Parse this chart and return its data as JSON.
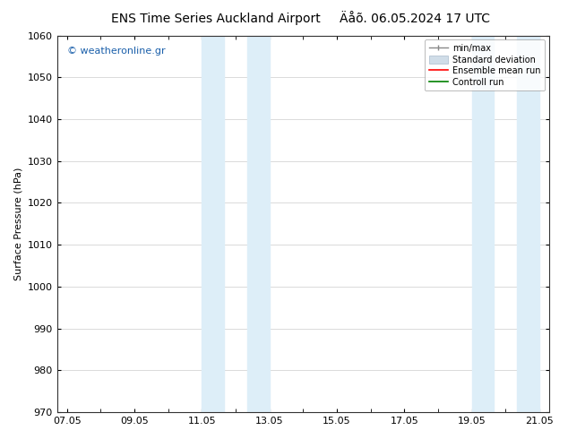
{
  "title_left": "ENS Time Series Auckland Airport",
  "title_right": "Äåõ. 06.05.2024 17 UTC",
  "ylabel": "Surface Pressure (hPa)",
  "ylim": [
    970,
    1060
  ],
  "yticks": [
    970,
    980,
    990,
    1000,
    1010,
    1020,
    1030,
    1040,
    1050,
    1060
  ],
  "xtick_labels": [
    "07.05",
    "09.05",
    "11.05",
    "13.05",
    "15.05",
    "17.05",
    "19.05",
    "21.05"
  ],
  "shaded_regions": [
    {
      "x0": "2024-05-11 00:00",
      "x1": "2024-05-11 18:00",
      "color": "#ddeef8"
    },
    {
      "x0": "2024-05-12 06:00",
      "x1": "2024-05-13 00:00",
      "color": "#ddeef8"
    },
    {
      "x0": "2024-05-19 00:00",
      "x1": "2024-05-19 18:00",
      "color": "#ddeef8"
    },
    {
      "x0": "2024-05-20 06:00",
      "x1": "2024-05-21 00:00",
      "color": "#ddeef8"
    }
  ],
  "watermark_text": "© weatheronline.gr",
  "watermark_color": "#1a5faa",
  "bg_color": "#ffffff",
  "plot_bg_color": "#ffffff",
  "grid_color": "#cccccc",
  "title_fontsize": 10,
  "axis_fontsize": 8,
  "tick_fontsize": 8,
  "legend_fontsize": 7
}
